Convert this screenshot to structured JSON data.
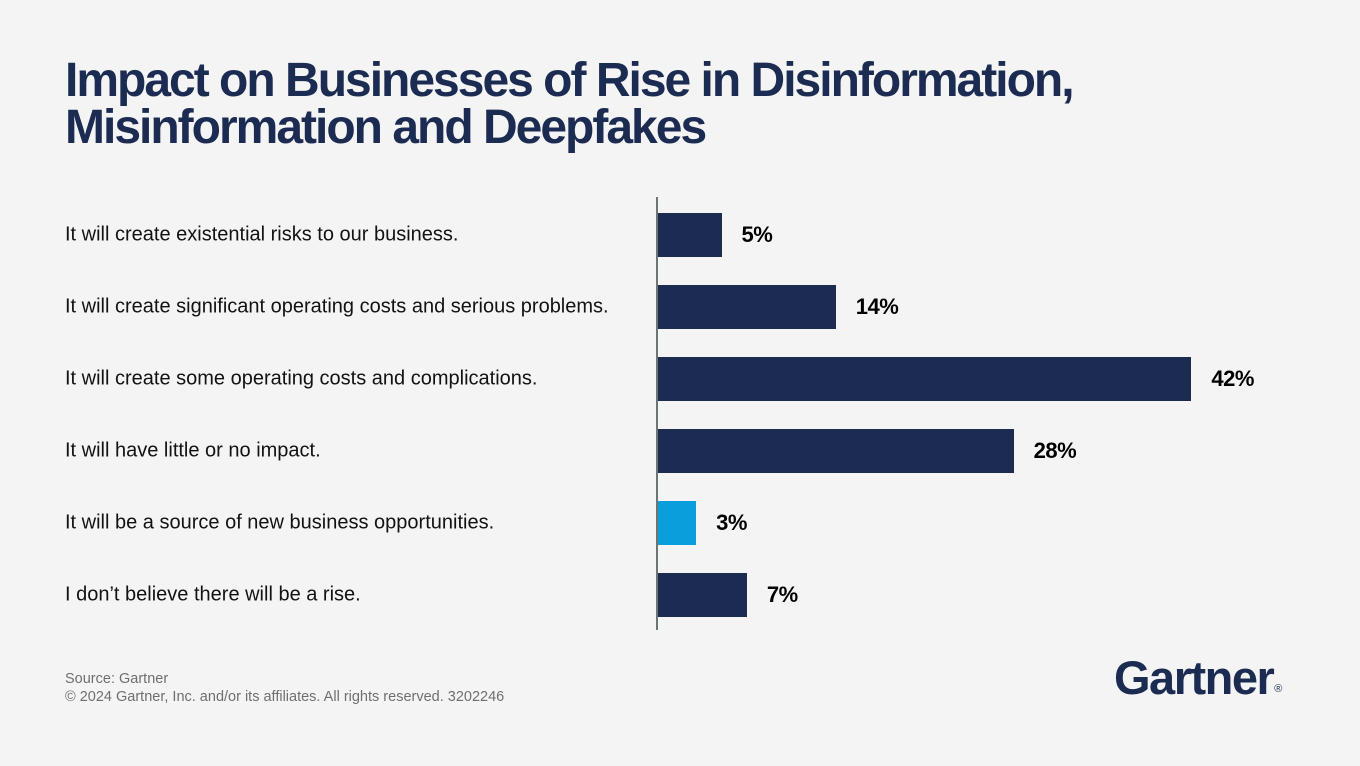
{
  "page": {
    "background": "#F4F4F4"
  },
  "header": {
    "title_lines": [
      "Impact on Businesses of Rise in Disinformation,",
      "Misinformation and Deepfakes"
    ],
    "title_color": "#1B2B52"
  },
  "chart_data": {
    "type": "bar",
    "orientation": "horizontal",
    "title": "Impact on Businesses of Rise in Disinformation, Misinformation and Deepfakes",
    "categories": [
      "It will create existential risks to our business.",
      "It will create significant operating costs and serious problems.",
      "It will create some operating costs and complications.",
      "It will have little or no impact.",
      "It will be a source of new business opportunities.",
      "I don’t believe there will be a rise."
    ],
    "values": [
      5,
      14,
      42,
      28,
      3,
      7
    ],
    "value_labels": [
      "5%",
      "14%",
      "42%",
      "28%",
      "3%",
      "7%"
    ],
    "bar_colors": [
      "#1B2B52",
      "#1B2B52",
      "#1B2B52",
      "#1B2B52",
      "#0A9EDC",
      "#1B2B52"
    ],
    "xlim": [
      0,
      45
    ],
    "axis_color": "#6E7472",
    "grid": false,
    "legend_position": "none"
  },
  "footer": {
    "source_line": "Source: Gartner",
    "copyright_line": "© 2024 Gartner, Inc. and/or its affiliates. All rights reserved. 3202246",
    "logo_text": "Gartner",
    "registered_mark": "®"
  }
}
